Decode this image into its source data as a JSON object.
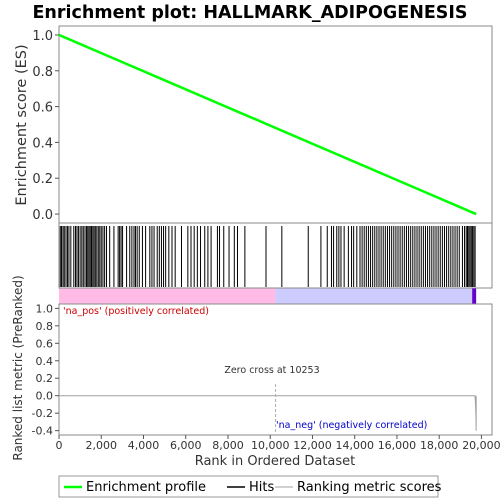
{
  "chart_data": [
    {
      "type": "line",
      "title": "Enrichment plot: HALLMARK_ADIPOGENESIS",
      "xlabel": "",
      "ylabel": "Enrichment score (ES)",
      "xlim": [
        0,
        20500
      ],
      "ylim": [
        -0.05,
        1.05
      ],
      "y_ticks": [
        "0.0",
        "0.2",
        "0.4",
        "0.6",
        "0.8",
        "1.0"
      ],
      "grid": false,
      "series": [
        {
          "name": "Enrichment profile",
          "color": "#00ff00",
          "x": [
            0,
            19750
          ],
          "y": [
            1.0,
            0.0
          ]
        }
      ]
    },
    {
      "type": "scatter",
      "title": "",
      "xlabel": "",
      "ylabel": "",
      "series": [
        {
          "name": "Hits",
          "color": "#000000",
          "x": [
            60,
            120,
            190,
            250,
            330,
            400,
            470,
            560,
            700,
            780,
            850,
            920,
            1000,
            1080,
            1150,
            1230,
            1300,
            1360,
            1420,
            1480,
            1540,
            1600,
            1660,
            1720,
            1790,
            1860,
            1930,
            2000,
            2080,
            2160,
            2250,
            2400,
            2600,
            2800,
            2870,
            2940,
            3010,
            3200,
            3350,
            3450,
            3550,
            3620,
            3700,
            3800,
            3950,
            4100,
            4300,
            4400,
            4500,
            4650,
            4750,
            4850,
            4950,
            5050,
            5200,
            5350,
            5500,
            5800,
            6100,
            6250,
            6400,
            6550,
            6700,
            6900,
            7050,
            7200,
            7500,
            7600,
            7800,
            8050,
            8300,
            8450,
            8800,
            9800,
            10550,
            11800,
            12400,
            12700,
            12900,
            13000,
            13150,
            13250,
            13350,
            13500,
            13700,
            13850,
            13950,
            14100,
            14250,
            14350,
            14450,
            14550,
            14650,
            14750,
            14850,
            14950,
            15050,
            15150,
            15250,
            15350,
            15450,
            15550,
            15650,
            15750,
            15850,
            15950,
            16050,
            16150,
            16250,
            16350,
            16450,
            16550,
            16650,
            16750,
            16850,
            16950,
            17050,
            17150,
            17250,
            17350,
            17450,
            17550,
            17650,
            17750,
            17850,
            17950,
            18050,
            18150,
            18250,
            18350,
            18450,
            18550,
            18650,
            18750,
            18850,
            18950,
            19100,
            19200,
            19280,
            19340,
            19400,
            19460,
            19520,
            19580,
            19640,
            19700
          ]
        }
      ]
    },
    {
      "type": "area",
      "title": "",
      "xlabel": "Rank in Ordered Dataset",
      "ylabel": "Ranked list metric (PreRanked)",
      "xlim": [
        0,
        20500
      ],
      "ylim": [
        -0.45,
        1.05
      ],
      "x_ticks": [
        "0",
        "2,000",
        "4,000",
        "6,000",
        "8,000",
        "10,000",
        "12,000",
        "14,000",
        "16,000",
        "18,000",
        "20,000"
      ],
      "y_ticks": [
        "-0.4",
        "-0.2",
        "0.0",
        "0.2",
        "0.4",
        "0.6",
        "0.8",
        "1.0"
      ],
      "grid": false,
      "series": [
        {
          "name": "Ranking metric scores",
          "color": "#b0b0b0",
          "x": [
            0,
            19690,
            19700,
            19720,
            19740,
            19750
          ],
          "y": [
            0.0,
            0.0,
            -0.02,
            -0.1,
            -0.25,
            -0.4
          ]
        }
      ],
      "annotations": {
        "pos": "'na_pos' (positively correlated)",
        "zero": "Zero cross at 10253",
        "neg": "'na_neg' (negatively correlated)"
      },
      "zero_cross": 10253,
      "total_rank": 19750
    }
  ],
  "legend": {
    "placement": "bottom",
    "items": [
      {
        "label": "Enrichment profile",
        "color": "#00ff00"
      },
      {
        "label": "Hits",
        "color": "#000000"
      },
      {
        "label": "Ranking metric scores",
        "color": "#c0c0c0"
      }
    ]
  },
  "colors": {
    "pos_band": "#ffbbe6",
    "neg_band": "#ccccff",
    "neg_end": "#6600cc",
    "pos_text": "#cc0000",
    "neg_text": "#0000cc",
    "zero_text": "#333333"
  }
}
